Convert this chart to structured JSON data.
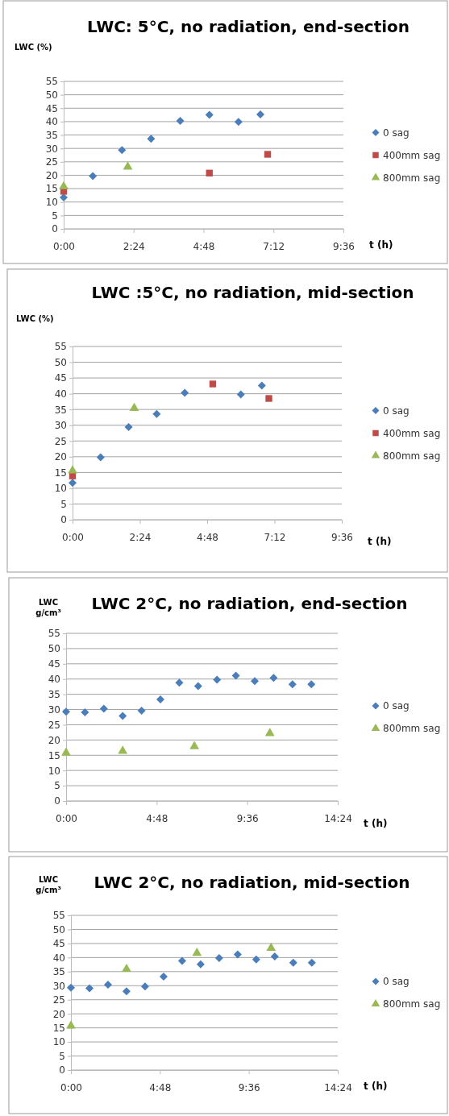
{
  "chart_data": [
    {
      "type": "scatter",
      "title": "LWC: 5°C, no radiation, end-section",
      "ylabel": "LWC (%)",
      "xlabel": "t (h)",
      "xlim": [
        0,
        9.6
      ],
      "xticks": [
        {
          "value": 0,
          "label": "0:00"
        },
        {
          "value": 2.4,
          "label": "2:24"
        },
        {
          "value": 4.8,
          "label": "4:48"
        },
        {
          "value": 7.2,
          "label": "7:12"
        },
        {
          "value": 9.6,
          "label": "9:36"
        }
      ],
      "ylim": [
        0,
        55
      ],
      "yticks": [
        0,
        5,
        10,
        15,
        20,
        25,
        30,
        35,
        40,
        45,
        50,
        55
      ],
      "grid": "y",
      "legend": "right",
      "series": [
        {
          "name": "0 sag",
          "color": "#4a7ebb",
          "marker": "diamond",
          "x": [
            0,
            1,
            2,
            3,
            4,
            5,
            6,
            6.75
          ],
          "values": [
            11.7,
            19.7,
            29.4,
            33.6,
            40.3,
            42.5,
            39.9,
            42.7
          ]
        },
        {
          "name": "400mm sag",
          "color": "#be4b48",
          "marker": "square",
          "x": [
            0,
            5,
            7
          ],
          "values": [
            14,
            20.8,
            27.8
          ]
        },
        {
          "name": "800mm sag",
          "color": "#98b954",
          "marker": "triangle",
          "x": [
            0,
            2.2
          ],
          "values": [
            15.8,
            23.1
          ]
        }
      ]
    },
    {
      "type": "scatter",
      "title": "LWC :5°C, no radiation, mid-section",
      "ylabel": "LWC (%)",
      "xlabel": "t (h)",
      "xlim": [
        0,
        9.6
      ],
      "xticks": [
        {
          "value": 0,
          "label": "0:00"
        },
        {
          "value": 2.4,
          "label": "2:24"
        },
        {
          "value": 4.8,
          "label": "4:48"
        },
        {
          "value": 7.2,
          "label": "7:12"
        },
        {
          "value": 9.6,
          "label": "9:36"
        }
      ],
      "ylim": [
        0,
        55
      ],
      "yticks": [
        0,
        5,
        10,
        15,
        20,
        25,
        30,
        35,
        40,
        45,
        50,
        55
      ],
      "grid": "y",
      "legend": "right",
      "series": [
        {
          "name": "0 sag",
          "color": "#4a7ebb",
          "marker": "diamond",
          "x": [
            0,
            1,
            2,
            3,
            4,
            5,
            6,
            6.75
          ],
          "values": [
            11.7,
            19.8,
            29.4,
            33.6,
            40.3,
            null,
            39.8,
            42.6
          ]
        },
        {
          "name": "400mm sag",
          "color": "#be4b48",
          "marker": "square",
          "x": [
            0,
            5,
            7
          ],
          "values": [
            13.9,
            43.1,
            38.5
          ]
        },
        {
          "name": "800mm sag",
          "color": "#98b954",
          "marker": "triangle",
          "x": [
            0,
            2.2
          ],
          "values": [
            15.6,
            35.4
          ]
        }
      ]
    },
    {
      "type": "scatter",
      "title": "LWC 2°C, no radiation, end-section",
      "ylabel": "LWC\ng/cm³",
      "xlabel": "t (h)",
      "xlim": [
        0,
        14.4
      ],
      "xticks": [
        {
          "value": 0,
          "label": "0:00"
        },
        {
          "value": 4.8,
          "label": "4:48"
        },
        {
          "value": 9.6,
          "label": "9:36"
        },
        {
          "value": 14.4,
          "label": "14:24"
        }
      ],
      "ylim": [
        0,
        55
      ],
      "yticks": [
        0,
        5,
        10,
        15,
        20,
        25,
        30,
        35,
        40,
        45,
        50,
        55
      ],
      "grid": "y",
      "legend": "right",
      "series": [
        {
          "name": "0 sag",
          "color": "#4a7ebb",
          "marker": "diamond",
          "x": [
            0,
            1,
            2,
            3,
            4,
            5,
            6,
            7,
            8,
            9,
            10,
            11,
            12,
            13
          ],
          "values": [
            29.3,
            29.1,
            30.3,
            27.9,
            29.6,
            33.3,
            38.8,
            37.7,
            39.8,
            41.1,
            39.3,
            40.4,
            38.3,
            38.3
          ]
        },
        {
          "name": "800mm sag",
          "color": "#98b954",
          "marker": "triangle",
          "x": [
            0,
            3,
            6.8,
            10.8
          ],
          "values": [
            15.8,
            16.4,
            17.9,
            22.2
          ]
        }
      ]
    },
    {
      "type": "scatter",
      "title": "LWC 2°C, no radiation, mid-section",
      "ylabel": "LWC\ng/cm³",
      "xlabel": "t (h)",
      "xlim": [
        0,
        14.4
      ],
      "xticks": [
        {
          "value": 0,
          "label": "0:00"
        },
        {
          "value": 4.8,
          "label": "4:48"
        },
        {
          "value": 9.6,
          "label": "9:36"
        },
        {
          "value": 14.4,
          "label": "14:24"
        }
      ],
      "ylim": [
        0,
        55
      ],
      "yticks": [
        0,
        5,
        10,
        15,
        20,
        25,
        30,
        35,
        40,
        45,
        50,
        55
      ],
      "grid": "y",
      "legend": "right",
      "series": [
        {
          "name": "0 sag",
          "color": "#4a7ebb",
          "marker": "diamond",
          "x": [
            0,
            1,
            2,
            3,
            4,
            5,
            6,
            7,
            8,
            9,
            10,
            11,
            12,
            13
          ],
          "values": [
            29.3,
            29.1,
            30.4,
            28,
            29.7,
            33.2,
            38.8,
            37.6,
            39.8,
            41.1,
            39.3,
            40.4,
            38.2,
            38.2
          ]
        },
        {
          "name": "800mm sag",
          "color": "#98b954",
          "marker": "triangle",
          "x": [
            0,
            3,
            6.8,
            10.8
          ],
          "values": [
            15.7,
            35.9,
            41.6,
            43.4
          ]
        }
      ]
    }
  ]
}
